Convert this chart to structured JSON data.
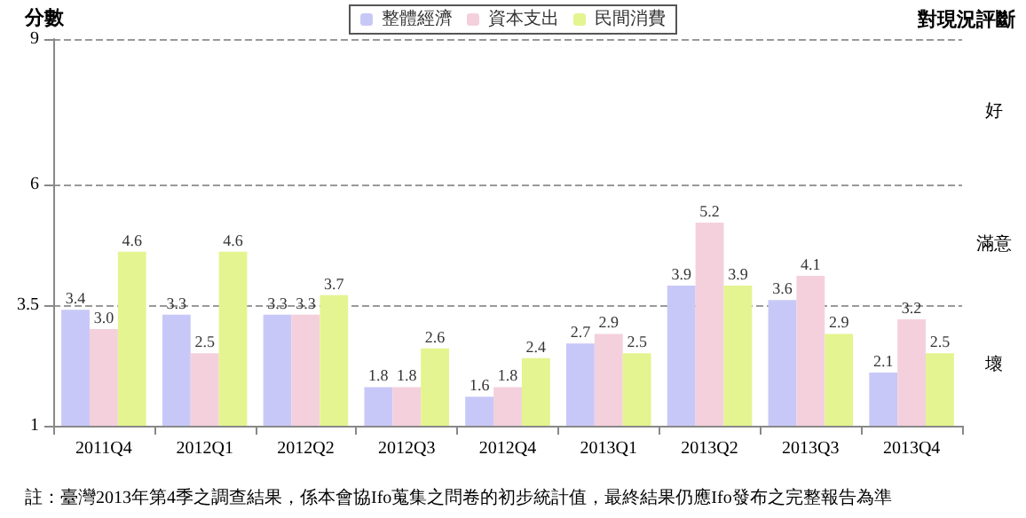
{
  "chart_data": {
    "type": "bar",
    "ylabel": "分數",
    "categories": [
      "2011Q4",
      "2012Q1",
      "2012Q2",
      "2012Q3",
      "2012Q4",
      "2013Q1",
      "2013Q2",
      "2013Q3",
      "2013Q4"
    ],
    "series": [
      {
        "name": "整體經濟",
        "color": "#c8c8f8",
        "values": [
          3.4,
          3.3,
          3.3,
          1.8,
          1.6,
          2.7,
          3.9,
          3.6,
          2.1
        ],
        "value_labels": [
          "3.4",
          "3.3",
          "3.3",
          "1.8",
          "1.6",
          "2.7",
          "3.9",
          "3.6",
          "2.1"
        ]
      },
      {
        "name": "資本支出",
        "color": "#f4d0dc",
        "values": [
          3.0,
          2.5,
          3.3,
          1.8,
          1.8,
          2.9,
          5.2,
          4.1,
          3.2
        ],
        "value_labels": [
          "3.0",
          "2.5",
          "3.3",
          "1.8",
          "1.8",
          "2.9",
          "5.2",
          "4.1",
          "3.2"
        ]
      },
      {
        "name": "民間消費",
        "color": "#e4f490",
        "values": [
          4.6,
          4.6,
          3.7,
          2.6,
          2.4,
          2.5,
          3.9,
          2.9,
          2.5
        ],
        "value_labels": [
          "4.6",
          "4.6",
          "3.7",
          "2.6",
          "2.4",
          "2.5",
          "3.9",
          "2.9",
          "2.5"
        ]
      }
    ],
    "ylim": [
      1,
      9
    ],
    "yticks": [
      1,
      3.5,
      6,
      9
    ],
    "grid": "y",
    "legend": "top",
    "annotations": [
      "對現況評斷",
      "好",
      "滿意",
      "壞",
      "註：臺灣2013年第4季之調查結果，係本會協Ifo蒐集之問卷的初步統計值，最終結果仍應Ifo發布之完整報告為準"
    ]
  }
}
